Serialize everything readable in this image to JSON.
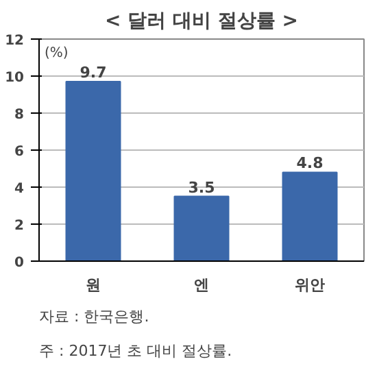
{
  "chart_data": {
    "type": "bar",
    "title": "< 달러 대비 절상률 >",
    "ylabel": "(%)",
    "categories": [
      "원",
      "엔",
      "위안"
    ],
    "values": [
      9.7,
      3.5,
      4.8
    ],
    "color": "#3b68aa",
    "ylim": [
      0,
      12
    ],
    "yticks": [
      0,
      2,
      4,
      6,
      8,
      10,
      12
    ],
    "grid": "y",
    "data_labels": true,
    "annotations": [
      "자료 : 한국은행.",
      "주 : 2017년 초 대비 절상률."
    ]
  }
}
